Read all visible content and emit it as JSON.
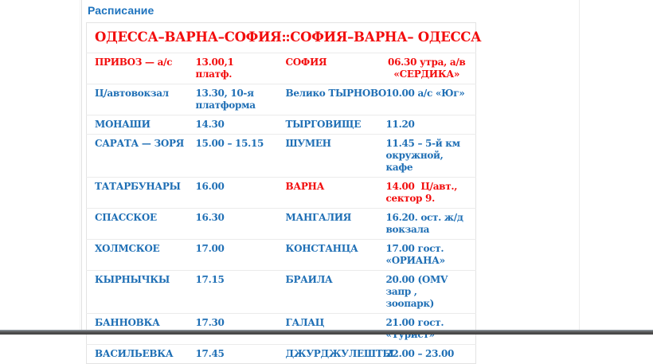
{
  "page": {
    "title": "Расписание"
  },
  "colors": {
    "blue": "#1f6fb5",
    "red": "#f20d0d",
    "title_blue": "#1e73be",
    "row_border": "#ebebeb",
    "bottom_bar": "#4a4a4a"
  },
  "table": {
    "header": {
      "left": "ОДЕССА–ВАРНА–СОФИЯ:",
      "right": ":СОФИЯ–ВАРНА– ОДЕССА"
    },
    "rows": [
      {
        "cells": [
          {
            "text": "ПРИВОЗ — а/с",
            "color": "red"
          },
          {
            "text": "13.00,1 платф.",
            "color": "red"
          },
          {
            "text": "СОФИЯ",
            "color": "red"
          },
          {
            "text": "06.30 утра, а/в «СЕРДИКА»",
            "color": "red",
            "align": "center"
          }
        ]
      },
      {
        "cells": [
          {
            "text": "Ц/автовокзал",
            "color": "blue"
          },
          {
            "text": "13.30, 10-я платформа",
            "color": "blue"
          },
          {
            "text": "Велико ТЫРНОВО",
            "color": "blue"
          },
          {
            "text": "10.00 а/с «Юг»",
            "color": "blue"
          }
        ]
      },
      {
        "cells": [
          {
            "text": "МОНАШИ",
            "color": "blue"
          },
          {
            "text": "14.30",
            "color": "blue"
          },
          {
            "text": "ТЫРГОВИЩЕ",
            "color": "blue"
          },
          {
            "text": "11.20",
            "color": "blue"
          }
        ]
      },
      {
        "cells": [
          {
            "text": "САРАТА — ЗОРЯ",
            "color": "blue"
          },
          {
            "text": "15.00 – 15.15",
            "color": "blue"
          },
          {
            "text": "ШУМЕН",
            "color": "blue"
          },
          {
            "text": "11.45 – 5-й км окружной, кафе",
            "color": "blue"
          }
        ]
      },
      {
        "cells": [
          {
            "text": "ТАТАРБУНАРЫ",
            "color": "blue"
          },
          {
            "text": "16.00",
            "color": "blue"
          },
          {
            "text": "ВАРНА",
            "color": "red"
          },
          {
            "text": "14.00  Ц/авт., сектор 9.",
            "color": "red"
          }
        ]
      },
      {
        "cells": [
          {
            "text": "СПАССКОЕ",
            "color": "blue"
          },
          {
            "text": "16.30",
            "color": "blue"
          },
          {
            "text": "МАНГАЛИЯ",
            "color": "blue"
          },
          {
            "text": "16.20. ост. ж/д вокзала",
            "color": "blue"
          }
        ]
      },
      {
        "cells": [
          {
            "text": "ХОЛМСКОЕ",
            "color": "blue"
          },
          {
            "text": "17.00",
            "color": "blue"
          },
          {
            "text": "КОНСТАНЦА",
            "color": "blue"
          },
          {
            "text": "17.00 гост. «ОРИАНА»",
            "color": "blue"
          }
        ]
      },
      {
        "cells": [
          {
            "text": "КЫРНЫЧКЫ",
            "color": "blue"
          },
          {
            "text": "17.15",
            "color": "blue"
          },
          {
            "text": "БРАИЛА",
            "color": "blue"
          },
          {
            "text": "20.00 (OMV запр , зоопарк)",
            "color": "blue"
          }
        ]
      },
      {
        "cells": [
          {
            "text": "БАННОВКА",
            "color": "blue"
          },
          {
            "text": "17.30",
            "color": "blue"
          },
          {
            "text": "ГАЛАЦ",
            "color": "blue"
          },
          {
            "text": "21.00 гост. «Турист»",
            "color": "blue"
          }
        ]
      },
      {
        "cells": [
          {
            "text": "ВАСИЛЬЕВКА",
            "color": "blue"
          },
          {
            "text": "17.45",
            "color": "blue"
          },
          {
            "text": "ДЖУРДЖУЛЕШТЫ",
            "color": "blue"
          },
          {
            "text": "22.00 – 23.00",
            "color": "blue"
          }
        ]
      }
    ]
  }
}
